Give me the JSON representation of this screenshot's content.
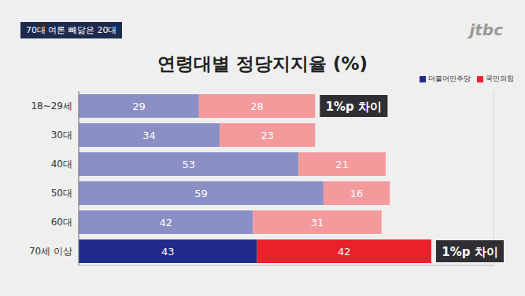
{
  "chart_data": {
    "type": "bar",
    "orientation": "horizontal",
    "stacked": true,
    "tag": "70대 여론 빼닮은 20대",
    "logo": "jtbc",
    "title": "연령대별 정당지지율 (%)",
    "categories": [
      "18~29세",
      "30대",
      "40대",
      "50대",
      "60대",
      "70세 이상"
    ],
    "series": [
      {
        "name": "더불어민주당",
        "color": "#1f2a8a",
        "colors": [
          "#8a8fc6",
          "#8a8fc6",
          "#8a8fc6",
          "#8a8fc6",
          "#8a8fc6",
          "#1f2a8a"
        ],
        "values": [
          29,
          34,
          53,
          59,
          42,
          43
        ]
      },
      {
        "name": "국민의힘",
        "color": "#e8212b",
        "colors": [
          "#f29a9c",
          "#f29a9c",
          "#f29a9c",
          "#f29a9c",
          "#f29a9c",
          "#e8212b"
        ],
        "values": [
          28,
          23,
          21,
          16,
          31,
          42
        ]
      }
    ],
    "annotations": [
      {
        "text": "1%p 차이",
        "category": "18~29세"
      },
      {
        "text": "1%p 차이",
        "category": "70세 이상"
      }
    ],
    "xlim": [
      0,
      100
    ],
    "xticks": [
      0,
      20,
      40,
      60,
      80,
      100
    ],
    "grid": true,
    "tick_labels": "y",
    "data_labels": true,
    "legend": "upper right"
  }
}
